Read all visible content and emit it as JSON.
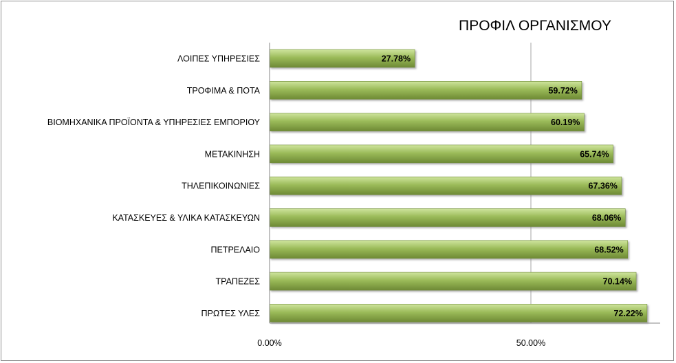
{
  "chart_data": {
    "type": "bar",
    "orientation": "horizontal",
    "title": "ΠΡΟΦΙΛ ΟΡΓΑΝΙΣΜΟΥ",
    "categories": [
      "ΛΟΙΠΕΣ ΥΠΗΡΕΣΙΕΣ",
      "ΤΡΟΦΙΜΑ & ΠΟΤΑ",
      "ΒΙΟΜΗΧΑΝΙΚΑ ΠΡΟΪΟΝΤΑ & ΥΠΗΡΕΣΙΕΣ ΕΜΠΟΡΙΟΥ",
      "ΜΕΤΑΚΙΝΗΣΗ",
      "ΤΗΛΕΠΙΚΟΙΝΩΝΙΕΣ",
      "ΚΑΤΑΣΚΕΥΕΣ & ΥΛΙΚΑ ΚΑΤΑΣΚΕΥΩΝ",
      "ΠΕΤΡΕΛΑΙΟ",
      "ΤΡΑΠΕΖΕΣ",
      "ΠΡΩΤΕΣ ΥΛΕΣ"
    ],
    "values": [
      27.78,
      59.72,
      60.19,
      65.74,
      67.36,
      68.06,
      68.52,
      70.14,
      72.22
    ],
    "value_labels": [
      "27.78%",
      "59.72%",
      "60.19%",
      "65.74%",
      "67.36%",
      "68.06%",
      "68.52%",
      "70.14%",
      "72.22%"
    ],
    "x_ticks": [
      0,
      50
    ],
    "x_tick_labels": [
      "0.00%",
      "50.00%"
    ],
    "xlim": [
      0,
      75
    ],
    "xlabel": "",
    "ylabel": "",
    "grid": "vertical major gridlines",
    "legend": "none",
    "bar_color": "#9bbb59",
    "bar_highlight": "#cfe59e",
    "bar_shadow": "#6e8a35"
  }
}
